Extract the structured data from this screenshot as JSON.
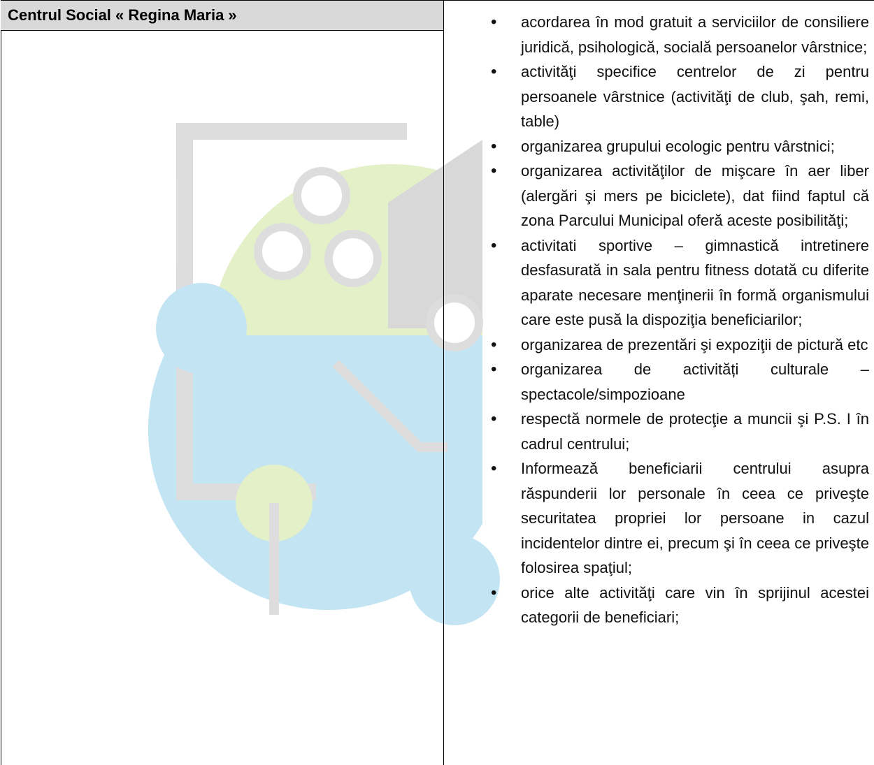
{
  "table": {
    "left": {
      "title": "Centrul Social « Regina Maria »"
    },
    "right": {
      "items": [
        "acordarea în mod gratuit a serviciilor de consiliere juridică, psihologică, socială persoanelor vârstnice;",
        "activităţi specifice centrelor de zi pentru persoanele vârstnice (activităţi de club, şah, remi, table)",
        "organizarea grupului ecologic pentru vârstnici;",
        "organizarea activităţilor de mişcare în aer liber (alergări şi mers pe biciclete), dat fiind faptul că zona Parcului Municipal oferă aceste posibilităţi;",
        "activitati sportive – gimnastică intretinere desfasurată in sala pentru fitness dotată cu diferite aparate necesare menţinerii în formă organismului care este pusă la dispoziţia beneficiarilor;",
        "organizarea de prezentări şi expoziţii de pictură etc",
        "organizarea de activități culturale – spectacole/simpozioane",
        "respectă normele de protecţie a muncii şi P.S. I în cadrul centrului;",
        "Informează beneficiarii centrului asupra răspunderii lor personale în ceea ce priveşte securitatea propriei lor persoane in cazul incidentelor dintre ei, precum şi în ceea ce priveşte folosirea spaţiul;",
        "orice alte activităţi care vin în sprijinul acestei categorii de beneficiari;"
      ]
    }
  }
}
